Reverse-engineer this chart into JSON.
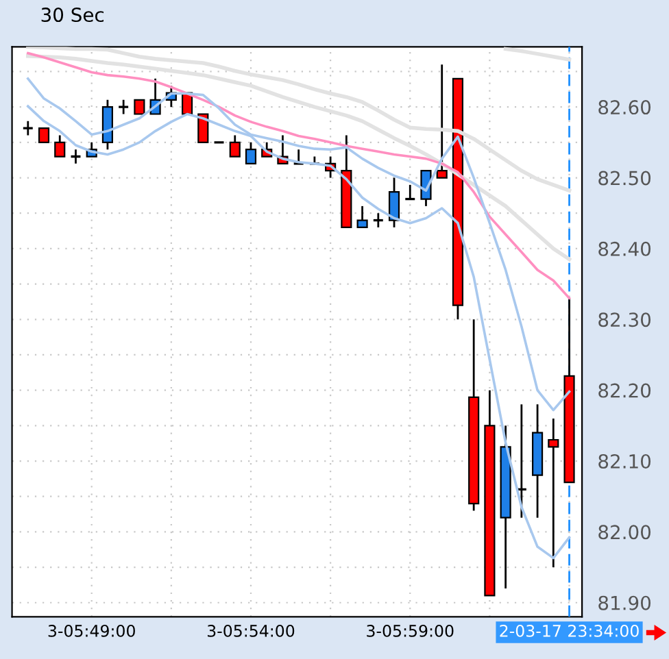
{
  "chart_data": {
    "type": "candlestick",
    "title": "30 Sec",
    "categories": [
      null,
      null,
      null,
      null,
      "3-05:49:00",
      null,
      null,
      null,
      null,
      null,
      null,
      null,
      null,
      null,
      "3-05:54:00",
      null,
      null,
      null,
      null,
      null,
      null,
      null,
      null,
      null,
      "3-05:59:00",
      null,
      null,
      null,
      null,
      null,
      null,
      null,
      null,
      null,
      "2-03-17 23:34:00"
    ],
    "ohlc": [
      [
        82.57,
        82.58,
        82.56,
        82.57
      ],
      [
        82.57,
        82.57,
        82.55,
        82.55
      ],
      [
        82.55,
        82.56,
        82.53,
        82.53
      ],
      [
        82.53,
        82.54,
        82.52,
        82.53
      ],
      [
        82.53,
        82.55,
        82.53,
        82.54
      ],
      [
        82.55,
        82.61,
        82.54,
        82.6
      ],
      [
        82.6,
        82.61,
        82.59,
        82.6
      ],
      [
        82.61,
        82.61,
        82.59,
        82.59
      ],
      [
        82.59,
        82.64,
        82.59,
        82.61
      ],
      [
        82.61,
        82.63,
        82.6,
        82.62
      ],
      [
        82.62,
        82.62,
        82.59,
        82.59
      ],
      [
        82.59,
        82.59,
        82.55,
        82.55
      ],
      [
        82.55,
        82.55,
        82.55,
        82.55
      ],
      [
        82.55,
        82.56,
        82.53,
        82.53
      ],
      [
        82.52,
        82.55,
        82.52,
        82.54
      ],
      [
        82.54,
        82.55,
        82.53,
        82.53
      ],
      [
        82.53,
        82.56,
        82.52,
        82.52
      ],
      [
        82.52,
        82.54,
        82.52,
        82.52
      ],
      [
        82.52,
        82.53,
        82.52,
        82.52
      ],
      [
        82.52,
        82.53,
        82.5,
        82.51
      ],
      [
        82.51,
        82.56,
        82.43,
        82.43
      ],
      [
        82.43,
        82.46,
        82.43,
        82.44
      ],
      [
        82.44,
        82.45,
        82.43,
        82.44
      ],
      [
        82.44,
        82.5,
        82.43,
        82.48
      ],
      [
        82.47,
        82.49,
        82.47,
        82.47
      ],
      [
        82.47,
        82.51,
        82.46,
        82.51
      ],
      [
        82.51,
        82.66,
        82.5,
        82.5
      ],
      [
        82.64,
        82.64,
        82.3,
        82.32
      ],
      [
        82.19,
        82.3,
        82.03,
        82.04
      ],
      [
        82.15,
        82.2,
        81.91,
        81.91
      ],
      [
        82.02,
        82.15,
        81.92,
        82.12
      ],
      [
        82.06,
        82.18,
        82.02,
        82.06
      ],
      [
        82.08,
        82.18,
        82.02,
        82.14
      ],
      [
        82.13,
        82.16,
        81.95,
        82.12
      ],
      [
        82.22,
        82.33,
        82.07,
        82.07
      ]
    ],
    "colors": [
      "#000000",
      "#ff0000",
      "#ff0000",
      "#000000",
      "#1e7fe8",
      "#1e7fe8",
      "#000000",
      "#ff0000",
      "#1e7fe8",
      "#1e7fe8",
      "#ff0000",
      "#ff0000",
      "#000000",
      "#ff0000",
      "#1e7fe8",
      "#ff0000",
      "#ff0000",
      "#000000",
      "#000000",
      "#ff0000",
      "#ff0000",
      "#1e7fe8",
      "#000000",
      "#1e7fe8",
      "#000000",
      "#1e7fe8",
      "#ff0000",
      "#ff0000",
      "#ff0000",
      "#ff0000",
      "#1e7fe8",
      "#000000",
      "#1e7fe8",
      "#ff0000",
      "#ff0000"
    ],
    "series": [
      {
        "type": "line",
        "color": "#e2e2e2",
        "values": [
          null,
          null,
          null,
          null,
          null,
          null,
          null,
          null,
          null,
          null,
          null,
          null,
          null,
          null,
          null,
          null,
          null,
          null,
          null,
          null,
          null,
          null,
          null,
          null,
          null,
          null,
          null,
          null,
          null,
          null,
          82.682,
          82.679,
          82.675,
          82.671,
          82.667
        ]
      },
      {
        "type": "line",
        "color": "#e2e2e2",
        "values": [
          82.685,
          82.684,
          82.683,
          82.682,
          82.682,
          82.681,
          82.676,
          82.671,
          82.668,
          82.666,
          82.664,
          82.662,
          82.657,
          82.651,
          82.646,
          82.642,
          82.638,
          82.632,
          82.625,
          82.619,
          82.614,
          82.607,
          82.595,
          82.582,
          82.571,
          82.569,
          82.568,
          82.566,
          82.555,
          82.54,
          82.525,
          82.51,
          82.498,
          82.49,
          82.482
        ]
      },
      {
        "type": "line",
        "color": "#e2e2e2",
        "values": [
          82.672,
          82.671,
          82.67,
          82.668,
          82.665,
          82.662,
          82.66,
          82.657,
          82.654,
          82.651,
          82.648,
          82.645,
          82.64,
          82.635,
          82.63,
          82.622,
          82.614,
          82.607,
          82.6,
          82.594,
          82.588,
          82.58,
          82.568,
          82.556,
          82.545,
          82.533,
          82.52,
          82.505,
          82.49,
          82.475,
          82.46,
          82.44,
          82.42,
          82.4,
          82.385
        ]
      },
      {
        "type": "line",
        "color": "#ff8fc0",
        "values": [
          82.676,
          82.67,
          82.663,
          82.656,
          82.649,
          82.645,
          82.643,
          82.64,
          82.636,
          82.628,
          82.619,
          82.61,
          82.6,
          82.588,
          82.579,
          82.572,
          82.566,
          82.559,
          82.555,
          82.55,
          82.545,
          82.541,
          82.537,
          82.533,
          82.53,
          82.527,
          82.52,
          82.508,
          82.48,
          82.445,
          82.42,
          82.395,
          82.37,
          82.355,
          82.33
        ]
      },
      {
        "type": "line",
        "color": "#a8c8ee",
        "values": [
          82.64,
          82.612,
          82.598,
          82.58,
          82.561,
          82.566,
          82.575,
          82.584,
          82.601,
          82.619,
          82.619,
          82.617,
          82.598,
          82.575,
          82.561,
          82.556,
          82.551,
          82.545,
          82.541,
          82.54,
          82.543,
          82.527,
          82.514,
          82.503,
          82.495,
          82.482,
          82.527,
          82.558,
          82.5,
          82.436,
          82.37,
          82.29,
          82.2,
          82.172,
          82.198
        ]
      },
      {
        "type": "line",
        "color": "#a8c8ee",
        "values": [
          82.601,
          82.58,
          82.566,
          82.546,
          82.537,
          82.533,
          82.54,
          82.55,
          82.566,
          82.579,
          82.59,
          82.584,
          82.575,
          82.566,
          82.559,
          82.537,
          82.527,
          82.522,
          82.52,
          82.517,
          82.498,
          82.472,
          82.456,
          82.443,
          82.436,
          82.443,
          82.457,
          82.436,
          82.36,
          82.243,
          82.126,
          82.035,
          81.979,
          81.963,
          81.992
        ]
      }
    ],
    "ylim": [
      81.88,
      82.685
    ],
    "yticks": [
      {
        "value": 81.9,
        "label": "81.90"
      },
      {
        "value": 81.95,
        "label": null
      },
      {
        "value": 82.0,
        "label": "82.00"
      },
      {
        "value": 82.05,
        "label": null
      },
      {
        "value": 82.1,
        "label": "82.10"
      },
      {
        "value": 82.15,
        "label": null
      },
      {
        "value": 82.2,
        "label": "82.20"
      },
      {
        "value": 82.25,
        "label": null
      },
      {
        "value": 82.3,
        "label": "82.30"
      },
      {
        "value": 82.35,
        "label": null
      },
      {
        "value": 82.4,
        "label": "82.40"
      },
      {
        "value": 82.45,
        "label": null
      },
      {
        "value": 82.5,
        "label": "82.50"
      },
      {
        "value": 82.55,
        "label": null
      },
      {
        "value": 82.6,
        "label": "82.60"
      },
      {
        "value": 82.65,
        "label": null
      }
    ],
    "grid": true,
    "ref_lines": [
      {
        "axis": "x",
        "value": "2-03-17 23:34:00",
        "color": "#1e90ff",
        "line_style": "dashed"
      }
    ]
  }
}
